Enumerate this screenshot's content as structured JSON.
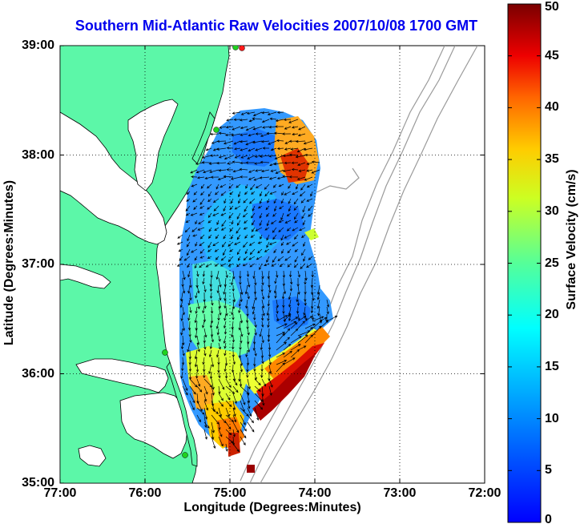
{
  "title": "Southern Mid-Atlantic Raw Velocities 2007/10/08 1700 GMT",
  "map": {
    "xlabel": "Longitude (Degrees:Minutes)",
    "ylabel": "Latitude (Degrees:Minutes)",
    "lon_range": [
      -77.0,
      -72.0
    ],
    "lat_range": [
      35.0,
      39.0
    ],
    "x_ticks": [
      {
        "value": -77,
        "label": "77:00"
      },
      {
        "value": -76,
        "label": "76:00"
      },
      {
        "value": -75,
        "label": "75:00"
      },
      {
        "value": -74,
        "label": "74:00"
      },
      {
        "value": -73,
        "label": "73:00"
      },
      {
        "value": -72,
        "label": "72:00"
      }
    ],
    "y_ticks": [
      {
        "value": 39,
        "label": "39:00"
      },
      {
        "value": 38,
        "label": "38:00"
      },
      {
        "value": 37,
        "label": "37:00"
      },
      {
        "value": 36,
        "label": "36:00"
      },
      {
        "value": 35,
        "label": "35:00"
      }
    ],
    "grid": "dotted",
    "land_color": "#5cf7a8",
    "coast_color": "#000000",
    "bathymetry_color": "#9a9a9a",
    "vector_color": "#000000",
    "station_color": "#1fd21f",
    "station_alert_color": "#ff1a1a"
  },
  "colorbar": {
    "label": "Surface Velocity (cm/s)",
    "range": [
      0,
      50
    ],
    "ticks": [
      "0",
      "5",
      "10",
      "15",
      "20",
      "25",
      "30",
      "35",
      "40",
      "45",
      "50"
    ],
    "colormap": "jet"
  }
}
